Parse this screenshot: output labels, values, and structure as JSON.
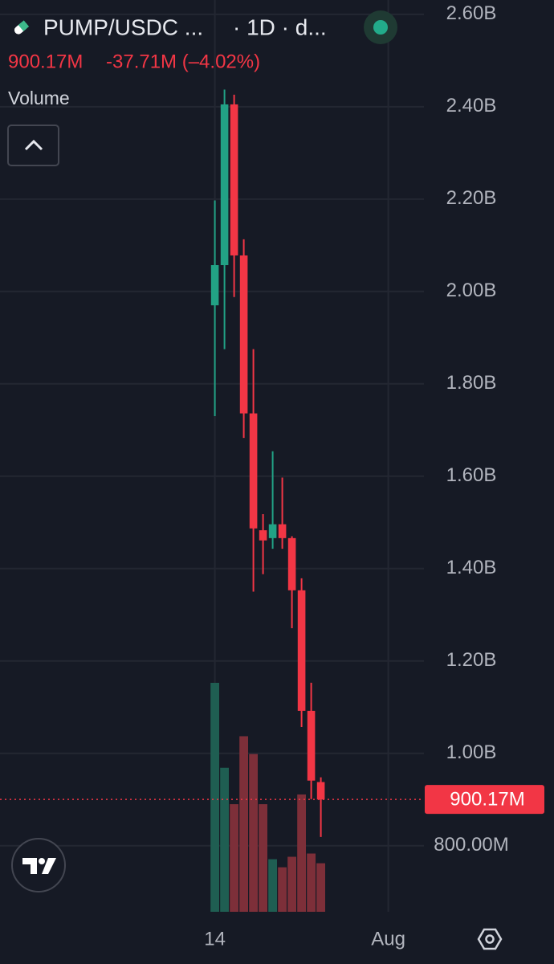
{
  "chart_data": {
    "type": "candlestick",
    "symbol": "PUMP/USDC ...",
    "interval": "· 1D · d...",
    "change_text": "-37.71M (–4.02%)",
    "volume_label": "Volume",
    "last_price": {
      "value": 900170000,
      "label": "900.17M"
    },
    "x": [
      0,
      1,
      2,
      3,
      4,
      5,
      6,
      7,
      8,
      9,
      10,
      11
    ],
    "open": [
      1970000000,
      2057000000,
      2405000000,
      2078000000,
      1736000000,
      1483000000,
      1466000000,
      1496000000,
      1466000000,
      1353000000,
      1092000000,
      937880000
    ],
    "high": [
      2197000000,
      2437000000,
      2426000000,
      2113000000,
      1875000000,
      1518000000,
      1654000000,
      1597000000,
      1470000000,
      1379000000,
      1153000000,
      948000000
    ],
    "low": [
      1730000000,
      1875000000,
      1988000000,
      1683000000,
      1350000000,
      1388000000,
      1443000000,
      1443000000,
      1271000000,
      1057000000,
      901000000,
      819000000
    ],
    "close": [
      2057000000,
      2405000000,
      2078000000,
      1736000000,
      1487000000,
      1461000000,
      1496000000,
      1466000000,
      1353000000,
      1092000000,
      941000000,
      900170000
    ],
    "volume": [
      283,
      178,
      133,
      217,
      195,
      133,
      65,
      55,
      68,
      145,
      72,
      60
    ],
    "up_color": "#22a285",
    "down_color": "#f23645",
    "volume_up_color": "#1f5e52",
    "volume_down_color": "#7d2f39",
    "xlim": [
      -22.3,
      21.7
    ],
    "xticks": [
      {
        "value": 0,
        "label": "14"
      },
      {
        "value": 18,
        "label": "Aug"
      }
    ],
    "ylim": [
      657000000,
      2631000000
    ],
    "yticks": [
      {
        "value": 800000000,
        "label": "800.00M"
      },
      {
        "value": 1000000000,
        "label": "1.00B"
      },
      {
        "value": 1200000000,
        "label": "1.20B"
      },
      {
        "value": 1400000000,
        "label": "1.40B"
      },
      {
        "value": 1600000000,
        "label": "1.60B"
      },
      {
        "value": 1800000000,
        "label": "1.80B"
      },
      {
        "value": 2000000000,
        "label": "2.00B"
      },
      {
        "value": 2200000000,
        "label": "2.20B"
      },
      {
        "value": 2400000000,
        "label": "2.40B"
      },
      {
        "value": 2600000000,
        "label": "2.60B"
      }
    ],
    "grid": true
  }
}
